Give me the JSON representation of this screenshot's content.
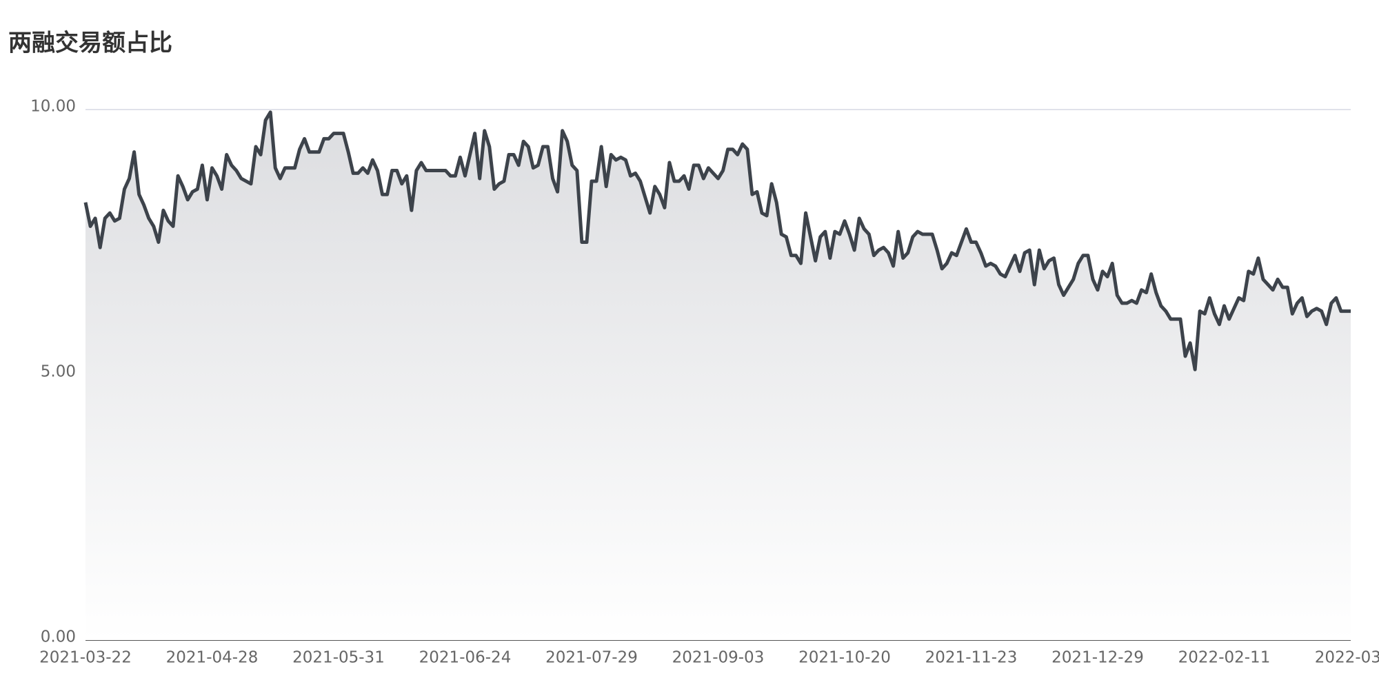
{
  "chart_data": {
    "type": "area",
    "title": "两融交易额占比",
    "categories": [
      "2021-03-22",
      null,
      null,
      null,
      null,
      null,
      null,
      null,
      null,
      null,
      null,
      null,
      null,
      null,
      null,
      null,
      null,
      null,
      null,
      null,
      null,
      null,
      null,
      null,
      null,
      null,
      "2021-04-28",
      null,
      null,
      null,
      null,
      null,
      null,
      null,
      null,
      null,
      null,
      null,
      null,
      null,
      null,
      null,
      null,
      null,
      null,
      null,
      null,
      null,
      null,
      null,
      null,
      null,
      "2021-05-31",
      null,
      null,
      null,
      null,
      null,
      null,
      null,
      null,
      null,
      null,
      null,
      null,
      null,
      null,
      null,
      null,
      null,
      null,
      null,
      null,
      null,
      null,
      null,
      null,
      null,
      "2021-06-24",
      null,
      null,
      null,
      null,
      null,
      null,
      null,
      null,
      null,
      null,
      null,
      null,
      null,
      null,
      null,
      null,
      null,
      null,
      null,
      null,
      null,
      null,
      null,
      null,
      null,
      "2021-07-29",
      null,
      null,
      null,
      null,
      null,
      null,
      null,
      null,
      null,
      null,
      null,
      null,
      null,
      null,
      null,
      null,
      null,
      null,
      null,
      null,
      null,
      null,
      null,
      null,
      null,
      "2021-09-03",
      null,
      null,
      null,
      null,
      null,
      null,
      null,
      null,
      null,
      null,
      null,
      null,
      null,
      null,
      null,
      null,
      null,
      null,
      null,
      null,
      null,
      null,
      null,
      null,
      null,
      "2021-10-20",
      null,
      null,
      null,
      null,
      null,
      null,
      null,
      null,
      null,
      null,
      null,
      null,
      null,
      null,
      null,
      null,
      null,
      null,
      null,
      null,
      null,
      null,
      null,
      null,
      null,
      "2021-11-23",
      null,
      null,
      null,
      null,
      null,
      null,
      null,
      null,
      null,
      null,
      null,
      null,
      null,
      null,
      null,
      null,
      null,
      null,
      null,
      null,
      null,
      null,
      null,
      null,
      null,
      "2021-12-29",
      null,
      null,
      null,
      null,
      null,
      null,
      null,
      null,
      null,
      null,
      null,
      null,
      null,
      null,
      null,
      null,
      null,
      null,
      null,
      null,
      null,
      null,
      null,
      null,
      null,
      "2022-02-11",
      null,
      null,
      null,
      null,
      null,
      null,
      null,
      null,
      null,
      null,
      null,
      null,
      null,
      null,
      null,
      null,
      null,
      null,
      null,
      null,
      null,
      null,
      null,
      null,
      null,
      "2022-03-"
    ],
    "values": [
      8.25,
      7.8,
      7.95,
      7.4,
      7.95,
      8.05,
      7.9,
      7.95,
      8.5,
      8.7,
      9.2,
      8.4,
      8.2,
      7.95,
      7.8,
      7.5,
      8.1,
      7.9,
      7.8,
      8.75,
      8.55,
      8.3,
      8.45,
      8.5,
      8.95,
      8.3,
      8.9,
      8.75,
      8.5,
      9.15,
      8.95,
      8.85,
      8.7,
      8.65,
      8.6,
      9.3,
      9.15,
      9.8,
      9.95,
      8.9,
      8.7,
      8.9,
      8.9,
      8.9,
      9.25,
      9.45,
      9.2,
      9.2,
      9.2,
      9.45,
      9.45,
      9.55,
      9.55,
      9.55,
      9.2,
      8.8,
      8.8,
      8.9,
      8.8,
      9.05,
      8.85,
      8.4,
      8.4,
      8.85,
      8.85,
      8.6,
      8.75,
      8.1,
      8.85,
      9.0,
      8.85,
      8.85,
      8.85,
      8.85,
      8.85,
      8.75,
      8.75,
      9.1,
      8.75,
      9.15,
      9.55,
      8.7,
      9.6,
      9.3,
      8.5,
      8.6,
      8.65,
      9.15,
      9.15,
      8.95,
      9.4,
      9.3,
      8.9,
      8.95,
      9.3,
      9.3,
      8.7,
      8.45,
      9.6,
      9.4,
      8.95,
      8.85,
      7.5,
      7.5,
      8.65,
      8.65,
      9.3,
      8.55,
      9.15,
      9.05,
      9.1,
      9.05,
      8.75,
      8.8,
      8.65,
      8.35,
      8.05,
      8.55,
      8.4,
      8.15,
      9.0,
      8.65,
      8.65,
      8.75,
      8.5,
      8.95,
      8.95,
      8.7,
      8.9,
      8.8,
      8.7,
      8.85,
      9.25,
      9.25,
      9.15,
      9.35,
      9.25,
      8.4,
      8.45,
      8.05,
      8.0,
      8.6,
      8.25,
      7.65,
      7.6,
      7.25,
      7.25,
      7.1,
      8.05,
      7.6,
      7.15,
      7.6,
      7.7,
      7.2,
      7.7,
      7.65,
      7.9,
      7.65,
      7.35,
      7.95,
      7.75,
      7.65,
      7.25,
      7.35,
      7.4,
      7.3,
      7.05,
      7.7,
      7.2,
      7.3,
      7.6,
      7.7,
      7.65,
      7.65,
      7.65,
      7.35,
      7.0,
      7.1,
      7.3,
      7.25,
      7.5,
      7.75,
      7.5,
      7.5,
      7.3,
      7.05,
      7.1,
      7.05,
      6.9,
      6.85,
      7.05,
      7.25,
      6.95,
      7.3,
      7.35,
      6.7,
      7.35,
      7.0,
      7.15,
      7.2,
      6.7,
      6.5,
      6.65,
      6.8,
      7.1,
      7.25,
      7.25,
      6.8,
      6.6,
      6.95,
      6.85,
      7.1,
      6.5,
      6.35,
      6.35,
      6.4,
      6.35,
      6.6,
      6.55,
      6.9,
      6.55,
      6.3,
      6.2,
      6.05,
      6.05,
      6.05,
      5.35,
      5.6,
      5.1,
      6.2,
      6.15,
      6.45,
      6.15,
      5.95,
      6.3,
      6.05,
      6.25,
      6.45,
      6.4,
      6.95,
      6.9,
      7.2,
      6.8,
      6.7,
      6.6,
      6.8,
      6.65,
      6.65,
      6.15,
      6.35,
      6.45,
      6.1,
      6.2,
      6.25,
      6.2,
      5.95,
      6.35,
      6.45,
      6.2,
      6.2,
      6.2
    ],
    "color": "#3d434b",
    "ylim": [
      0,
      10
    ],
    "yticks": [
      {
        "value": 0,
        "label": "0.00"
      },
      {
        "value": 5,
        "label": "5.00"
      },
      {
        "value": 10,
        "label": "10.00"
      }
    ],
    "grid": true
  }
}
